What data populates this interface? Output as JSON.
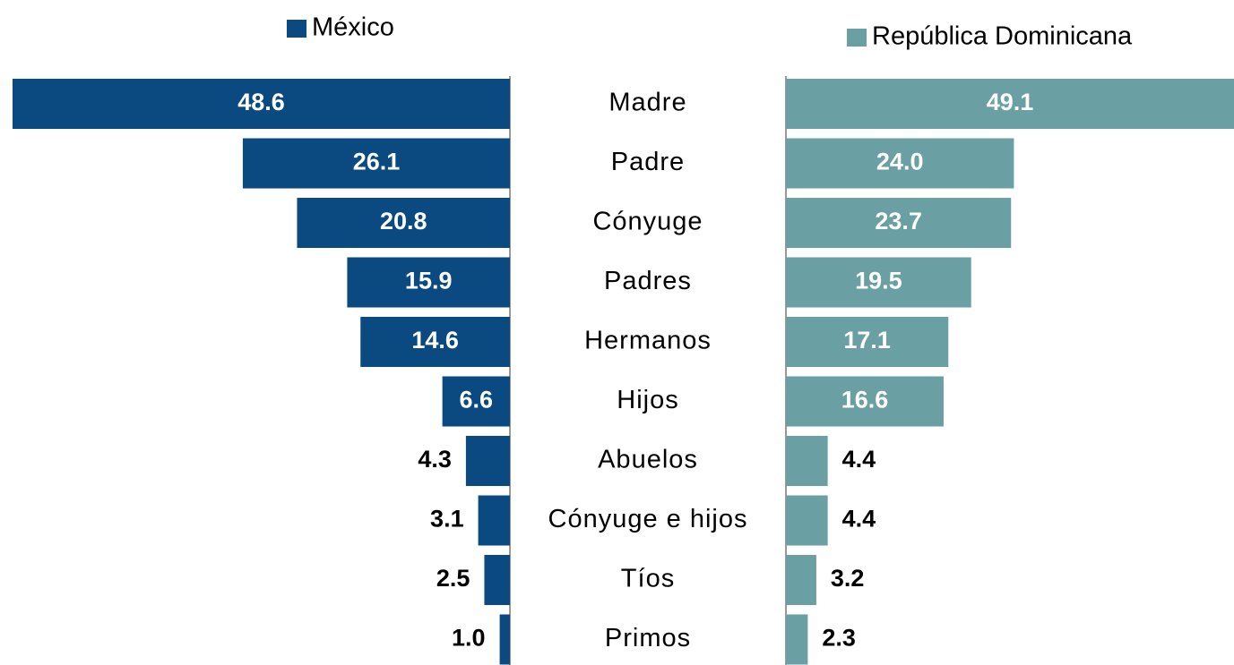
{
  "chart_data": {
    "type": "butterfly-bar",
    "categories": [
      "Madre",
      "Padre",
      "Cónyuge",
      "Padres",
      "Hermanos",
      "Hijos",
      "Abuelos",
      "Cónyuge e hijos",
      "Tíos",
      "Primos"
    ],
    "series": [
      {
        "name": "México",
        "color": "#0b4a80",
        "values": [
          48.6,
          26.1,
          20.8,
          15.9,
          14.6,
          6.6,
          4.3,
          3.1,
          2.5,
          1.0
        ],
        "value_labels": [
          "48.6",
          "26.1",
          "20.8",
          "15.9",
          "14.6",
          "6.6",
          "4.3",
          "3.1",
          "2.5",
          "1.0"
        ]
      },
      {
        "name": "República Dominicana",
        "color": "#6a9fa3",
        "values": [
          49.1,
          24.0,
          23.7,
          19.5,
          17.1,
          16.6,
          4.4,
          4.4,
          3.2,
          2.3
        ],
        "value_labels": [
          "49.1",
          "24.0",
          "23.7",
          "19.5",
          "17.1",
          "16.6",
          "4.4",
          "4.4",
          "3.2",
          "2.3"
        ]
      }
    ]
  }
}
